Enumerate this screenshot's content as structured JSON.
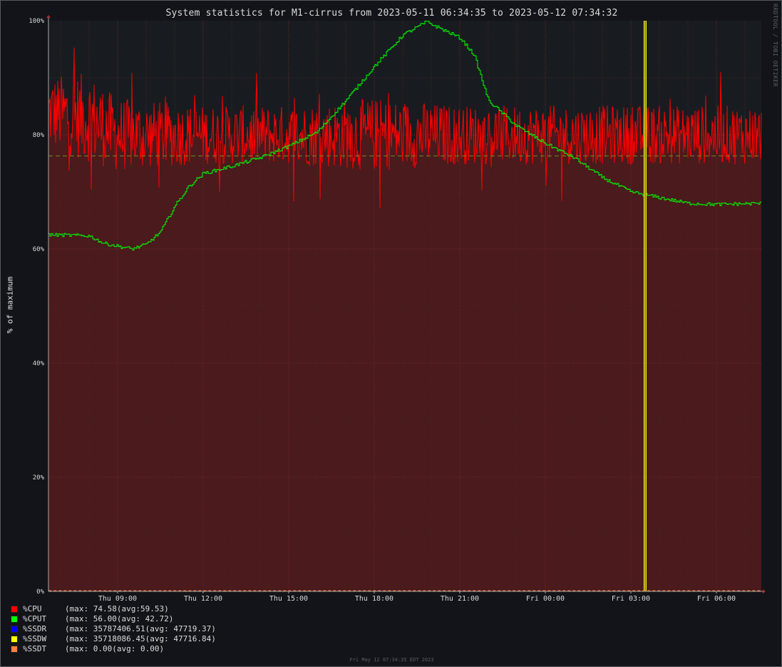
{
  "chart_data": {
    "type": "line",
    "title": "System statistics for M1-cirrus from 2023-05-11 06:34:35 to 2023-05-12 07:34:32",
    "ylabel": "% of maximum",
    "xlabel": "",
    "watermark": "RRDTOOL / TOBI OETIKER",
    "footer": "Fri May 12 07:34:35 EDT 2023",
    "x_range": [
      "2023-05-11 06:34:35",
      "2023-05-12 07:34:32"
    ],
    "ylim": [
      0,
      100
    ],
    "y_ticks": [
      {
        "value": 0,
        "label": "0%"
      },
      {
        "value": 20,
        "label": "20%"
      },
      {
        "value": 40,
        "label": "40%"
      },
      {
        "value": 60,
        "label": "60%"
      },
      {
        "value": 80,
        "label": "80%"
      },
      {
        "value": 100,
        "label": "100%"
      }
    ],
    "x_ticks": [
      {
        "time": "2023-05-11 09:00",
        "label": "Thu 09:00"
      },
      {
        "time": "2023-05-11 12:00",
        "label": "Thu 12:00"
      },
      {
        "time": "2023-05-11 15:00",
        "label": "Thu 15:00"
      },
      {
        "time": "2023-05-11 18:00",
        "label": "Thu 18:00"
      },
      {
        "time": "2023-05-11 21:00",
        "label": "Thu 21:00"
      },
      {
        "time": "2023-05-12 00:00",
        "label": "Fri 00:00"
      },
      {
        "time": "2023-05-12 03:00",
        "label": "Fri 03:00"
      },
      {
        "time": "2023-05-12 06:00",
        "label": "Fri 06:00"
      }
    ],
    "grid": true,
    "colors": {
      "background": "#121419",
      "plot_background": "#181c20",
      "cpu_fill": "#4a1a1c",
      "grid_major": "#7a2a2a",
      "grid_minor": "#4a2626"
    },
    "avg_line": {
      "value": 76.3,
      "color": "#6b8f20",
      "style": "dashed"
    },
    "series": [
      {
        "name": "%CPU",
        "color": "#ff0000",
        "style": "noisy-area",
        "band": [
          {
            "time": "2023-05-11 06:35",
            "mean": 84,
            "spread": 5
          },
          {
            "time": "2023-05-11 08:00",
            "mean": 83,
            "spread": 6
          },
          {
            "time": "2023-05-11 09:00",
            "mean": 80,
            "spread": 5
          },
          {
            "time": "2023-05-11 12:00",
            "mean": 80,
            "spread": 4
          },
          {
            "time": "2023-05-11 15:00",
            "mean": 80,
            "spread": 4
          },
          {
            "time": "2023-05-11 18:00",
            "mean": 80,
            "spread": 5
          },
          {
            "time": "2023-05-11 21:00",
            "mean": 80,
            "spread": 4
          },
          {
            "time": "2023-05-12 00:00",
            "mean": 80,
            "spread": 4
          },
          {
            "time": "2023-05-12 03:00",
            "mean": 80,
            "spread": 4
          },
          {
            "time": "2023-05-12 06:00",
            "mean": 80,
            "spread": 4
          },
          {
            "time": "2023-05-12 07:34",
            "mean": 80,
            "spread": 4
          }
        ],
        "legend": "(max: 74.58(avg:59.53)"
      },
      {
        "name": "%CPUT",
        "color": "#00ff00",
        "style": "step-line",
        "points": [
          {
            "time": "2023-05-11 06:35",
            "value": 62.5
          },
          {
            "time": "2023-05-11 08:00",
            "value": 62.3
          },
          {
            "time": "2023-05-11 08:30",
            "value": 61.0
          },
          {
            "time": "2023-05-11 09:30",
            "value": 60.0
          },
          {
            "time": "2023-05-11 10:00",
            "value": 60.8
          },
          {
            "time": "2023-05-11 10:30",
            "value": 63.0
          },
          {
            "time": "2023-05-11 11:00",
            "value": 67.5
          },
          {
            "time": "2023-05-11 11:30",
            "value": 71.0
          },
          {
            "time": "2023-05-11 12:00",
            "value": 73.2
          },
          {
            "time": "2023-05-11 13:00",
            "value": 74.5
          },
          {
            "time": "2023-05-11 14:00",
            "value": 76.0
          },
          {
            "time": "2023-05-11 15:00",
            "value": 78.0
          },
          {
            "time": "2023-05-11 16:00",
            "value": 80.5
          },
          {
            "time": "2023-05-11 17:00",
            "value": 86.0
          },
          {
            "time": "2023-05-11 18:00",
            "value": 92.0
          },
          {
            "time": "2023-05-11 19:00",
            "value": 97.5
          },
          {
            "time": "2023-05-11 19:50",
            "value": 99.8
          },
          {
            "time": "2023-05-11 21:00",
            "value": 97.0
          },
          {
            "time": "2023-05-11 21:30",
            "value": 94.0
          },
          {
            "time": "2023-05-11 22:00",
            "value": 86.0
          },
          {
            "time": "2023-05-11 23:00",
            "value": 81.5
          },
          {
            "time": "2023-05-12 00:00",
            "value": 78.5
          },
          {
            "time": "2023-05-12 01:00",
            "value": 76.0
          },
          {
            "time": "2023-05-12 02:00",
            "value": 72.5
          },
          {
            "time": "2023-05-12 03:00",
            "value": 70.0
          },
          {
            "time": "2023-05-12 04:00",
            "value": 69.0
          },
          {
            "time": "2023-05-12 05:00",
            "value": 68.0
          },
          {
            "time": "2023-05-12 06:00",
            "value": 67.8
          },
          {
            "time": "2023-05-12 07:34",
            "value": 68.0
          }
        ],
        "legend": "(max: 56.00(avg: 42.72)"
      },
      {
        "name": "%SSDR",
        "color": "#0000ff",
        "style": "line",
        "points": [
          {
            "time": "2023-05-11 06:35",
            "value": 0
          },
          {
            "time": "2023-05-12 07:34",
            "value": 0
          }
        ],
        "legend": "(max: 35787406.51(avg: 47719.37)"
      },
      {
        "name": "%SSDW",
        "color": "#ffff00",
        "style": "spike",
        "spike": {
          "time": "2023-05-12 03:30",
          "value": 100
        },
        "legend": "(max: 35718086.45(avg: 47716.84)"
      },
      {
        "name": "%SSDT",
        "color": "#ff8040",
        "style": "dashed-line",
        "points": [
          {
            "time": "2023-05-11 06:35",
            "value": 0
          },
          {
            "time": "2023-05-12 07:34",
            "value": 0
          }
        ],
        "legend": "(max: 0.00(avg: 0.00)"
      }
    ]
  }
}
